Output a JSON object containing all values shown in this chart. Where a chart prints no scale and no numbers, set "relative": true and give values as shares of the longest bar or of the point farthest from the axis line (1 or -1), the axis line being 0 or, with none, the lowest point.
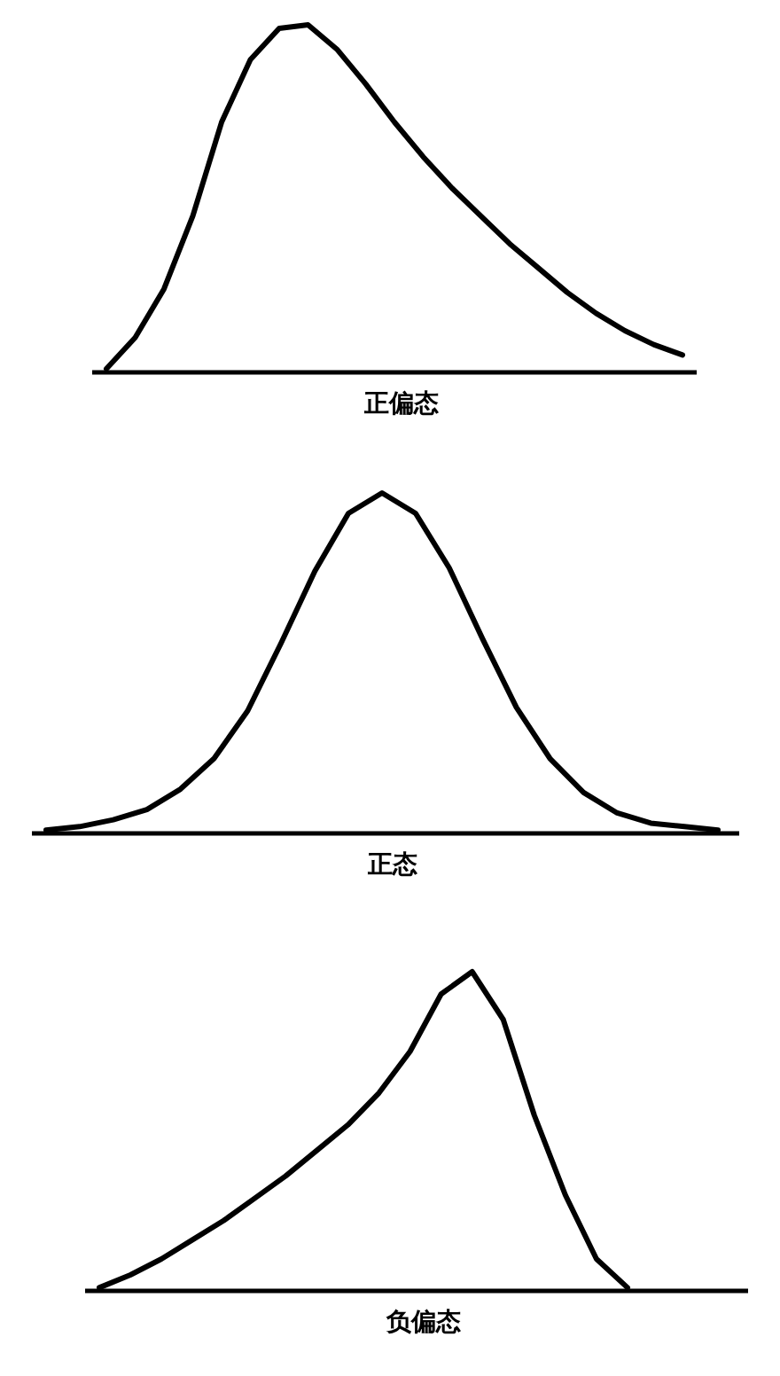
{
  "chart_data": [
    {
      "type": "line",
      "relative": true,
      "xlabel": "正偏态",
      "color": "#000000",
      "categories": [
        null,
        null,
        null,
        null,
        null,
        null,
        null,
        null,
        null,
        null,
        null,
        null,
        null,
        null,
        null,
        null,
        null,
        null,
        null,
        null,
        null
      ],
      "values": [
        0.01,
        0.1,
        0.24,
        0.45,
        0.72,
        0.9,
        0.99,
        1,
        0.93,
        0.83,
        0.72,
        0.62,
        0.53,
        0.45,
        0.37,
        0.3,
        0.23,
        0.17,
        0.12,
        0.08,
        0.05
      ]
    },
    {
      "type": "line",
      "relative": true,
      "xlabel": "正态",
      "color": "#000000",
      "categories": [
        null,
        null,
        null,
        null,
        null,
        null,
        null,
        null,
        null,
        null,
        null,
        null,
        null,
        null,
        null,
        null,
        null,
        null,
        null,
        null,
        null
      ],
      "values": [
        0.01,
        0.02,
        0.04,
        0.07,
        0.13,
        0.22,
        0.36,
        0.56,
        0.77,
        0.94,
        1,
        0.94,
        0.78,
        0.57,
        0.37,
        0.22,
        0.12,
        0.06,
        0.03,
        0.02,
        0.01
      ]
    },
    {
      "type": "line",
      "relative": true,
      "xlabel": "负偏态",
      "color": "#000000",
      "categories": [
        null,
        null,
        null,
        null,
        null,
        null,
        null,
        null,
        null,
        null,
        null,
        null,
        null,
        null,
        null,
        null,
        null,
        null
      ],
      "values": [
        0.01,
        0.05,
        0.1,
        0.16,
        0.22,
        0.29,
        0.36,
        0.44,
        0.52,
        0.62,
        0.75,
        0.93,
        1,
        0.85,
        0.55,
        0.3,
        0.1,
        0.01
      ]
    }
  ]
}
